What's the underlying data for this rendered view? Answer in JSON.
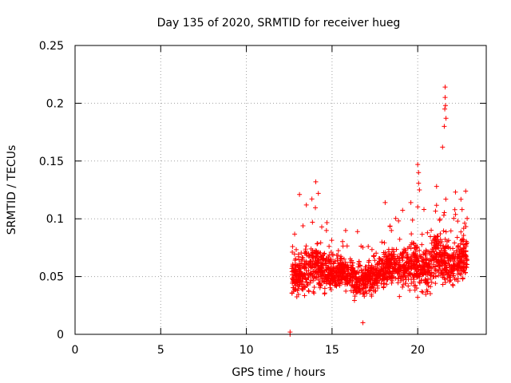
{
  "chart_data": {
    "type": "scatter",
    "title": "Day 135 of 2020, SRMTID for receiver hueg",
    "xlabel": "GPS time / hours",
    "ylabel": "SRMTID / TECUs",
    "xlim": [
      0,
      24
    ],
    "ylim": [
      0,
      0.25
    ],
    "xticks": [
      0,
      5,
      10,
      15,
      20
    ],
    "xtick_labels": [
      "0",
      "5",
      "10",
      "15",
      "20"
    ],
    "yticks": [
      0,
      0.05,
      0.1,
      0.15,
      0.2,
      0.25
    ],
    "ytick_labels": [
      "0",
      "0.05",
      "0.1",
      "0.15",
      "0.2",
      "0.25"
    ],
    "grid": true,
    "marker": "+",
    "series": [
      {
        "name": "SRMTID",
        "color": "#ff0000",
        "x_range": [
          12.5,
          22.9
        ],
        "n_points": 1800,
        "envelope_hours": [
          12.5,
          13.0,
          13.5,
          14.0,
          14.5,
          15.0,
          15.5,
          16.0,
          16.5,
          17.0,
          17.5,
          18.0,
          18.5,
          19.0,
          19.5,
          20.0,
          20.5,
          21.0,
          21.5,
          22.0,
          22.5,
          22.9
        ],
        "envelope_median": [
          0.05,
          0.05,
          0.055,
          0.06,
          0.058,
          0.052,
          0.055,
          0.052,
          0.045,
          0.048,
          0.05,
          0.055,
          0.06,
          0.058,
          0.06,
          0.06,
          0.055,
          0.065,
          0.065,
          0.06,
          0.065,
          0.07
        ],
        "envelope_spread": [
          0.015,
          0.02,
          0.02,
          0.025,
          0.02,
          0.015,
          0.015,
          0.015,
          0.015,
          0.015,
          0.015,
          0.015,
          0.018,
          0.02,
          0.02,
          0.025,
          0.02,
          0.025,
          0.025,
          0.02,
          0.025,
          0.025
        ],
        "notable_points": [
          {
            "x": 12.55,
            "y": 0.0
          },
          {
            "x": 12.55,
            "y": 0.002
          },
          {
            "x": 13.1,
            "y": 0.121
          },
          {
            "x": 13.5,
            "y": 0.112
          },
          {
            "x": 14.05,
            "y": 0.132
          },
          {
            "x": 14.2,
            "y": 0.122
          },
          {
            "x": 14.4,
            "y": 0.093
          },
          {
            "x": 16.8,
            "y": 0.01
          },
          {
            "x": 18.1,
            "y": 0.114
          },
          {
            "x": 19.6,
            "y": 0.114
          },
          {
            "x": 20.0,
            "y": 0.147
          },
          {
            "x": 20.05,
            "y": 0.14
          },
          {
            "x": 20.1,
            "y": 0.125
          },
          {
            "x": 21.1,
            "y": 0.128
          },
          {
            "x": 21.45,
            "y": 0.162
          },
          {
            "x": 21.6,
            "y": 0.214
          },
          {
            "x": 21.6,
            "y": 0.205
          },
          {
            "x": 21.62,
            "y": 0.198
          },
          {
            "x": 21.58,
            "y": 0.195
          },
          {
            "x": 21.65,
            "y": 0.187
          },
          {
            "x": 21.55,
            "y": 0.18
          },
          {
            "x": 22.8,
            "y": 0.124
          }
        ]
      }
    ]
  }
}
